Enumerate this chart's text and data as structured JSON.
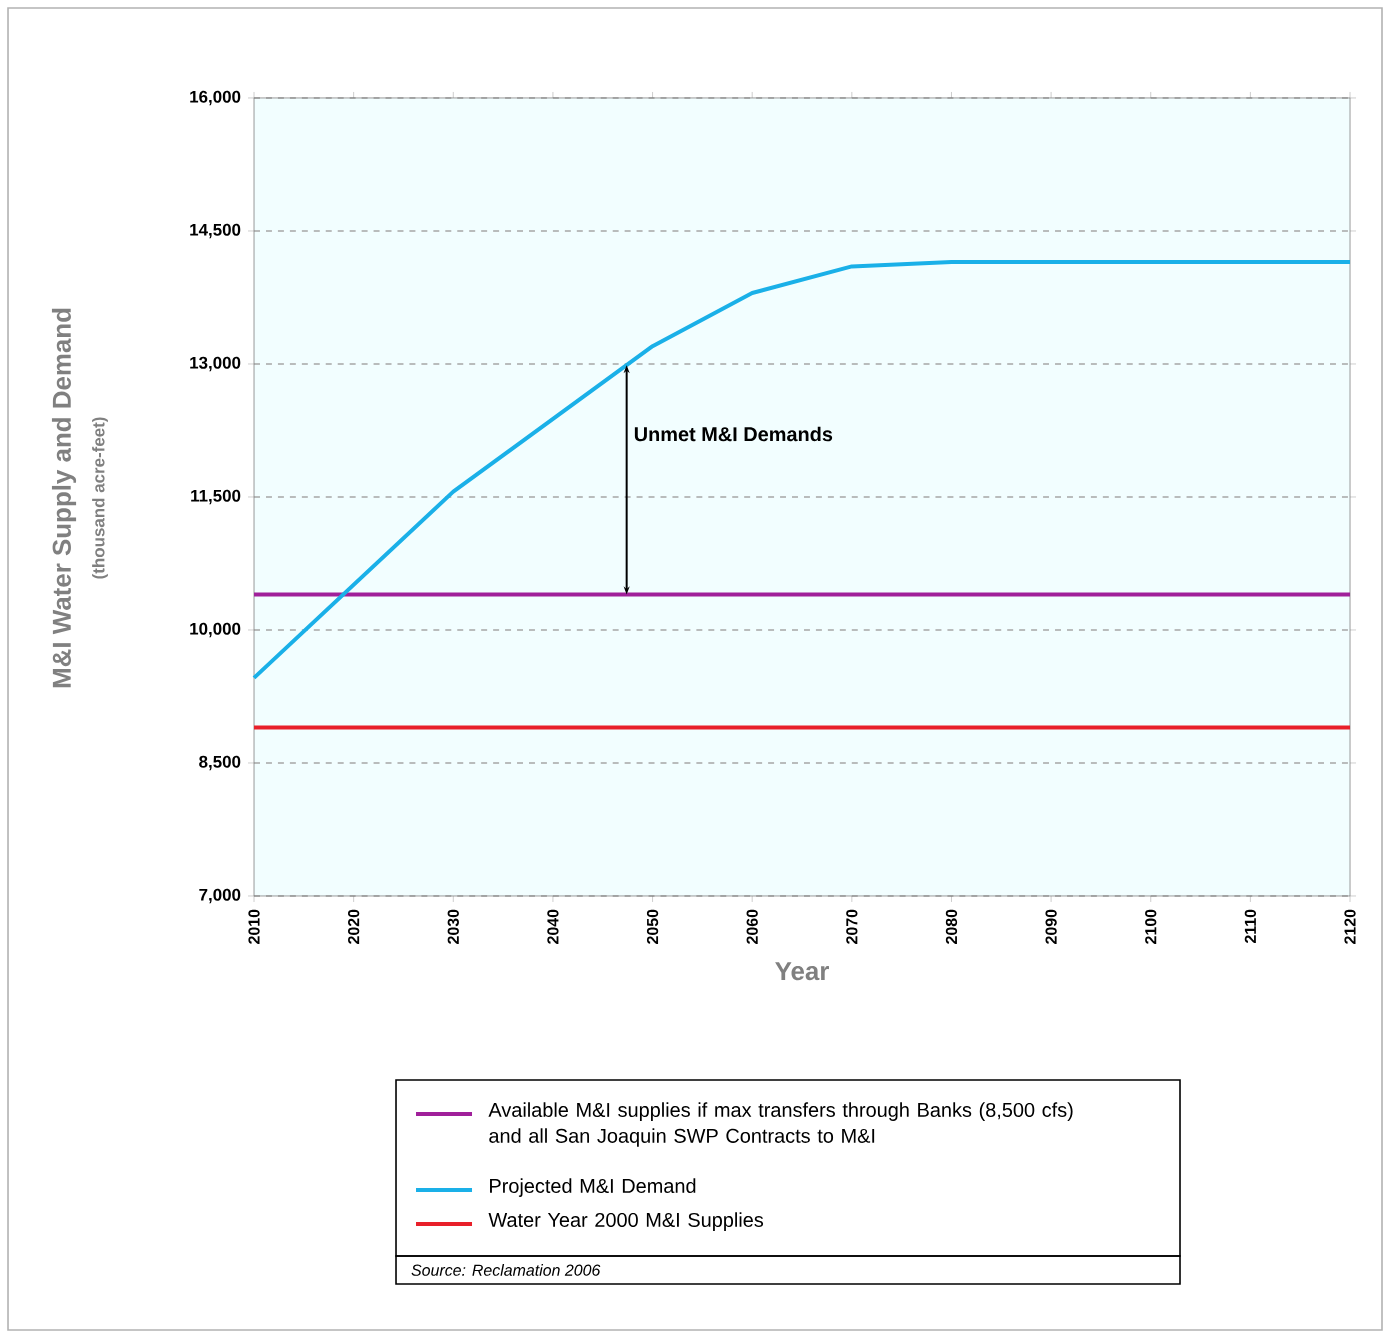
{
  "chart_data": {
    "type": "line",
    "xlabel": "Year",
    "ylabel": "M&I Water Supply and Demand",
    "xlim": [
      2010,
      2120
    ],
    "xticks": [
      2010,
      2020,
      2030,
      2040,
      2050,
      2060,
      2070,
      2080,
      2090,
      2100,
      2110,
      2120
    ],
    "ylim": [
      7000,
      16000
    ],
    "yticks": [
      {
        "value": 7000,
        "label": "7,000"
      },
      {
        "value": 8500,
        "label": "8,500"
      },
      {
        "value": 10000,
        "label": "10,000"
      },
      {
        "value": 11500,
        "label": "11,500"
      },
      {
        "value": 13000,
        "label": "13,000"
      },
      {
        "value": 14500,
        "label": "14,500"
      },
      {
        "value": 16000,
        "label": "16,000"
      }
    ],
    "grid": "y",
    "legend": "bottom",
    "marker": "none",
    "line_style": "solid",
    "series": [
      {
        "name": "Available M&I supplies if max transfers through Banks (8,500 cfs) and all San Joaquin SWP Contracts to M&I",
        "color": "#a0209a",
        "x": [
          2010,
          2120
        ],
        "values": [
          10400,
          10400
        ]
      },
      {
        "name": "Projected M&I Demand",
        "color": "#1ab0e8",
        "x": [
          2010,
          2030,
          2050,
          2060,
          2070,
          2080,
          2120
        ],
        "values": [
          9460,
          11560,
          13200,
          13800,
          14100,
          14150,
          14150
        ]
      },
      {
        "name": "Water Year 2000 M&I Supplies",
        "color": "#e8202a",
        "x": [
          2010,
          2120
        ],
        "values": [
          8900,
          8900
        ]
      }
    ],
    "annotations": [
      "Unmet M&I Demands",
      "(thousand acre-feet)",
      "Source: Reclamation 2006"
    ]
  }
}
